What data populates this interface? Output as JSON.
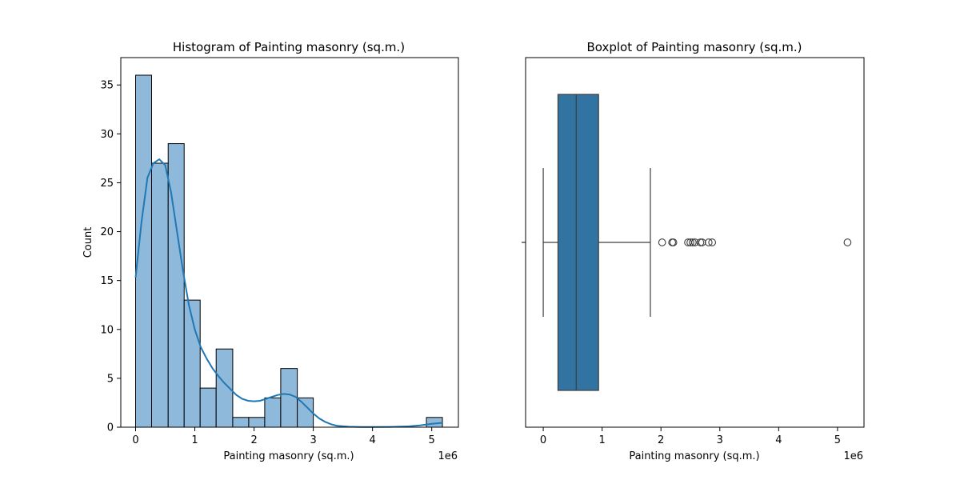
{
  "chart_data": [
    {
      "type": "bar",
      "subtype": "histogram",
      "title": "Histogram of Painting masonry (sq.m.)",
      "xlabel": "Painting masonry (sq.m.)",
      "ylabel": "Count",
      "x_offset_label": "1e6",
      "xlim": [
        -0.25,
        5.45
      ],
      "ylim": [
        0,
        37.8
      ],
      "xticks": [
        0,
        1,
        2,
        3,
        4,
        5
      ],
      "yticks": [
        0,
        5,
        10,
        15,
        20,
        25,
        30,
        35
      ],
      "bins": [
        {
          "x0": 0.0,
          "x1": 0.27,
          "count": 36
        },
        {
          "x0": 0.27,
          "x1": 0.55,
          "count": 27
        },
        {
          "x0": 0.55,
          "x1": 0.82,
          "count": 29
        },
        {
          "x0": 0.82,
          "x1": 1.09,
          "count": 13
        },
        {
          "x0": 1.09,
          "x1": 1.36,
          "count": 4
        },
        {
          "x0": 1.36,
          "x1": 1.64,
          "count": 8
        },
        {
          "x0": 1.64,
          "x1": 1.91,
          "count": 1
        },
        {
          "x0": 1.91,
          "x1": 2.18,
          "count": 1
        },
        {
          "x0": 2.18,
          "x1": 2.45,
          "count": 3
        },
        {
          "x0": 2.45,
          "x1": 2.73,
          "count": 6
        },
        {
          "x0": 2.73,
          "x1": 3.0,
          "count": 3
        },
        {
          "x0": 4.91,
          "x1": 5.18,
          "count": 1
        }
      ],
      "kde": [
        [
          0.0,
          15.3
        ],
        [
          0.1,
          21.0
        ],
        [
          0.2,
          25.5
        ],
        [
          0.3,
          27.0
        ],
        [
          0.4,
          27.4
        ],
        [
          0.5,
          26.8
        ],
        [
          0.6,
          24.0
        ],
        [
          0.7,
          20.0
        ],
        [
          0.8,
          16.0
        ],
        [
          0.9,
          12.5
        ],
        [
          1.0,
          10.0
        ],
        [
          1.1,
          8.2
        ],
        [
          1.2,
          7.0
        ],
        [
          1.3,
          6.0
        ],
        [
          1.4,
          5.2
        ],
        [
          1.5,
          4.5
        ],
        [
          1.6,
          3.9
        ],
        [
          1.7,
          3.3
        ],
        [
          1.8,
          2.9
        ],
        [
          1.9,
          2.7
        ],
        [
          2.0,
          2.65
        ],
        [
          2.1,
          2.7
        ],
        [
          2.2,
          2.9
        ],
        [
          2.3,
          3.1
        ],
        [
          2.4,
          3.3
        ],
        [
          2.5,
          3.4
        ],
        [
          2.6,
          3.35
        ],
        [
          2.7,
          3.1
        ],
        [
          2.8,
          2.6
        ],
        [
          2.9,
          2.0
        ],
        [
          3.0,
          1.4
        ],
        [
          3.1,
          0.9
        ],
        [
          3.2,
          0.55
        ],
        [
          3.3,
          0.3
        ],
        [
          3.4,
          0.15
        ],
        [
          3.6,
          0.05
        ],
        [
          3.8,
          0.02
        ],
        [
          4.0,
          0.02
        ],
        [
          4.3,
          0.03
        ],
        [
          4.6,
          0.08
        ],
        [
          4.8,
          0.18
        ],
        [
          5.0,
          0.35
        ],
        [
          5.18,
          0.45
        ]
      ],
      "colors": {
        "bar": "#8fb9da",
        "bar_edge": "#000000",
        "kde": "#1f77b4"
      }
    },
    {
      "type": "boxplot",
      "title": "Boxplot of Painting masonry (sq.m.)",
      "xlabel": "Painting masonry (sq.m.)",
      "x_offset_label": "1e6",
      "xlim": [
        -0.3,
        5.45
      ],
      "xticks": [
        0,
        1,
        2,
        3,
        4,
        5
      ],
      "whisker_low": 0.0,
      "q1": 0.25,
      "median": 0.56,
      "q3": 0.94,
      "whisker_high": 1.82,
      "outliers": [
        2.02,
        2.19,
        2.21,
        2.46,
        2.5,
        2.54,
        2.58,
        2.67,
        2.7,
        2.81,
        2.87,
        5.17
      ],
      "colors": {
        "box": "#3274a1",
        "line": "#3d3d3d"
      }
    }
  ]
}
